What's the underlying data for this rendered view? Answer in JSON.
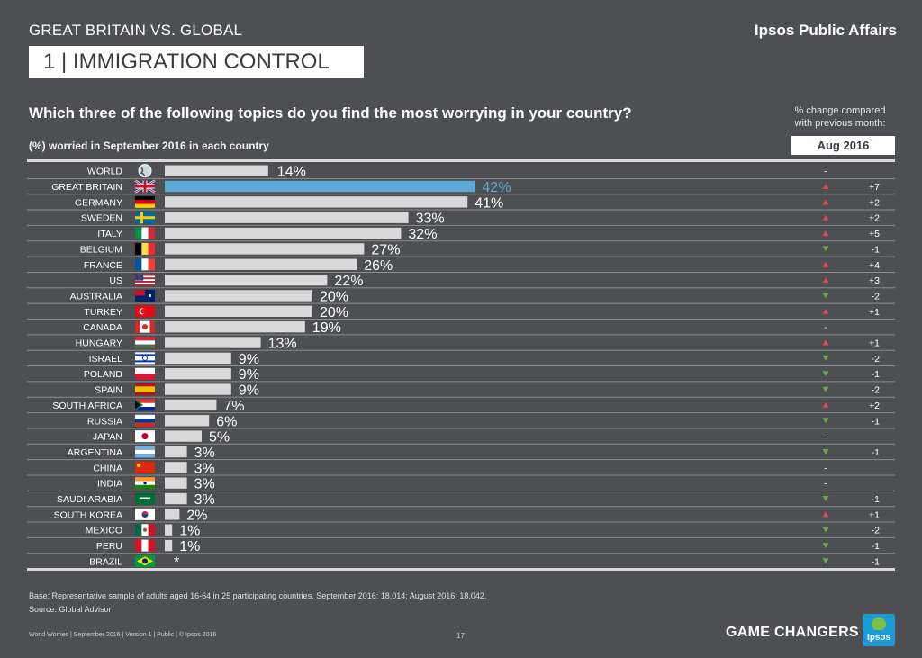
{
  "header": {
    "section": "GREAT BRITAIN VS. GLOBAL",
    "brand": "Ipsos Public Affairs",
    "title": "1 | IMMIGRATION CONTROL"
  },
  "question": "Which three of the following topics do you find the most worrying in your country?",
  "change_note": "% change compared with previous month:",
  "month_label": "Aug 2016",
  "subtitle": "(%) worried in September 2016 in each country",
  "colors": {
    "bar": "#d9d9d9",
    "highlight": "#5aa9d6",
    "up": "#e24a4a",
    "down": "#6aa84f",
    "label_highlight": "#5aa9d6"
  },
  "chart_data": {
    "type": "bar",
    "orientation": "horizontal",
    "title": "(%) worried in September 2016 in each country",
    "categories": [
      "WORLD",
      "GREAT BRITAIN",
      "GERMANY",
      "SWEDEN",
      "ITALY",
      "BELGIUM",
      "FRANCE",
      "US",
      "AUSTRALIA",
      "TURKEY",
      "CANADA",
      "HUNGARY",
      "ISRAEL",
      "POLAND",
      "SPAIN",
      "SOUTH AFRICA",
      "RUSSIA",
      "JAPAN",
      "ARGENTINA",
      "CHINA",
      "INDIA",
      "SAUDI ARABIA",
      "SOUTH KOREA",
      "MEXICO",
      "PERU",
      "BRAZIL"
    ],
    "values": [
      14,
      42,
      41,
      33,
      32,
      27,
      26,
      22,
      20,
      20,
      19,
      13,
      9,
      9,
      9,
      7,
      6,
      5,
      3,
      3,
      3,
      3,
      2,
      1,
      1,
      0
    ],
    "value_labels": [
      "14%",
      "42%",
      "41%",
      "33%",
      "32%",
      "27%",
      "26%",
      "22%",
      "20%",
      "20%",
      "19%",
      "13%",
      "9%",
      "9%",
      "9%",
      "7%",
      "6%",
      "5%",
      "3%",
      "3%",
      "3%",
      "3%",
      "2%",
      "1%",
      "1%",
      "*"
    ],
    "highlight": "GREAT BRITAIN",
    "change_labels": [
      "-",
      "+7",
      "+2",
      "+2",
      "+5",
      "-1",
      "+4",
      "+3",
      "-2",
      "+1",
      "-",
      "+1",
      "-2",
      "-1",
      "-2",
      "+2",
      "-1",
      "-",
      "-1",
      "-",
      "-",
      "-1",
      "+1",
      "-2",
      "-1",
      "-1"
    ],
    "change_direction": [
      "none",
      "up",
      "up",
      "up",
      "up",
      "down",
      "up",
      "up",
      "down",
      "up",
      "none",
      "up",
      "down",
      "down",
      "down",
      "up",
      "down",
      "none",
      "down",
      "none",
      "none",
      "down",
      "up",
      "down",
      "down",
      "down"
    ],
    "xlim": [
      0,
      45
    ]
  },
  "flags": [
    "globe-icon",
    "flag-gb",
    "flag-de",
    "flag-se",
    "flag-it",
    "flag-be",
    "flag-fr",
    "flag-us",
    "flag-au",
    "flag-tr",
    "flag-ca",
    "flag-hu",
    "flag-il",
    "flag-pl",
    "flag-es",
    "flag-za",
    "flag-ru",
    "flag-jp",
    "flag-ar",
    "flag-cn",
    "flag-in",
    "flag-sa",
    "flag-kr",
    "flag-mx",
    "flag-pe",
    "flag-br"
  ],
  "footer": {
    "base": "Base: Representative sample of adults aged 16-64 in 25 participating countries. September 2016: 18,014; August 2016: 18,042.",
    "source": "Source: Global Advisor",
    "meta": "World Worries | September 2016 | Version 1 | Public | © Ipsos 2016",
    "page": "17",
    "tagline": "GAME CHANGERS",
    "logo": "Ipsos"
  }
}
